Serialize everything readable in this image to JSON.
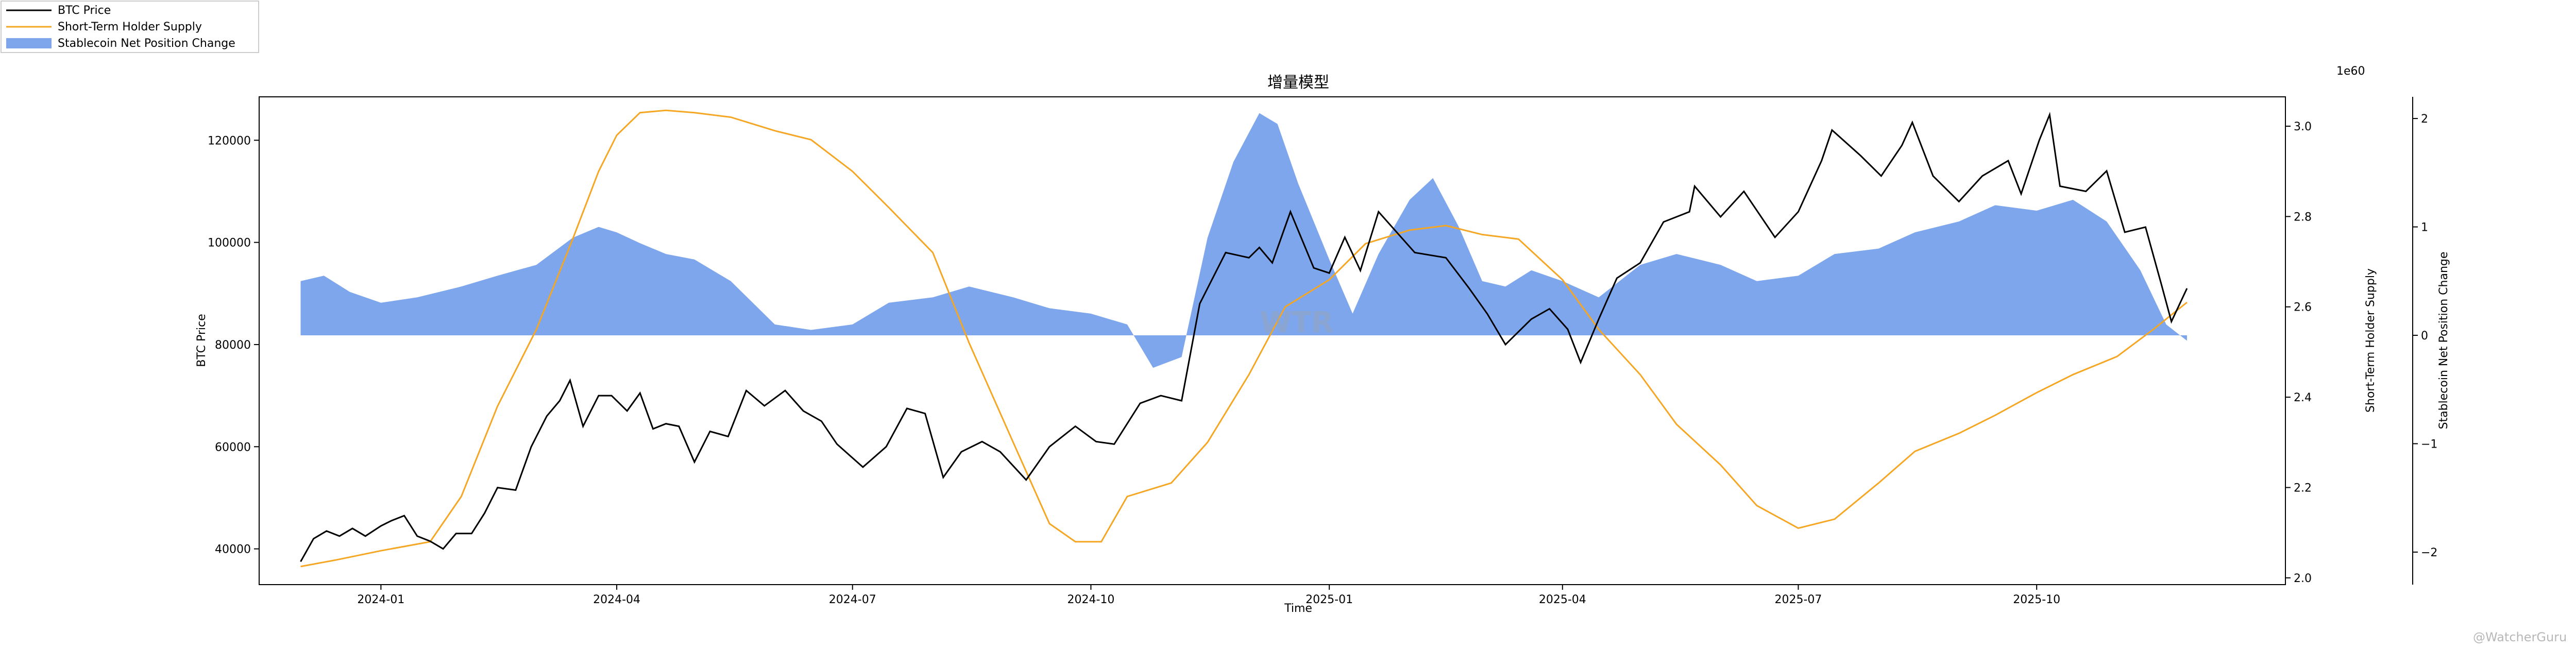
{
  "chart_data": {
    "type": "line",
    "title": "增量模型",
    "xlabel": "Time",
    "x_ticks": [
      "2024-01",
      "2024-04",
      "2024-07",
      "2024-10",
      "2025-01",
      "2025-04",
      "2025-07",
      "2025-10"
    ],
    "x_range": [
      "2023-11-15",
      "2026-01-05"
    ],
    "y_left": {
      "label": "BTC Price",
      "range": [
        33000,
        128500
      ],
      "ticks": [
        40000,
        60000,
        80000,
        100000,
        120000
      ]
    },
    "y_right1": {
      "label": "Short-Term Holder Supply",
      "range": [
        1.985,
        3.065
      ],
      "ticks": [
        2.0,
        2.2,
        2.4,
        2.6,
        2.8,
        3.0
      ],
      "offset_text": "1e60"
    },
    "y_right2": {
      "label": "Stablecoin Net Position Change",
      "range": [
        -2.3,
        2.2
      ],
      "ticks": [
        -2,
        -1,
        0,
        1,
        2
      ]
    },
    "legend": {
      "placement": "top-left",
      "entries": [
        "BTC Price",
        "Short-Term Holder Supply",
        "Stablecoin Net Position Change"
      ]
    },
    "colors": {
      "btc": "#000000",
      "sth": "#f5a623",
      "stable": "#7ea6ec"
    },
    "watermark": "WTR",
    "corner_watermark": "@WatcherGuru",
    "series": [
      {
        "name": "BTC Price",
        "axis": "left",
        "kind": "line",
        "points": [
          [
            "2023-12-01",
            37500
          ],
          [
            "2023-12-06",
            42000
          ],
          [
            "2023-12-11",
            43500
          ],
          [
            "2023-12-16",
            42500
          ],
          [
            "2023-12-21",
            44000
          ],
          [
            "2023-12-26",
            42500
          ],
          [
            "2024-01-01",
            44500
          ],
          [
            "2024-01-05",
            45500
          ],
          [
            "2024-01-10",
            46500
          ],
          [
            "2024-01-15",
            42500
          ],
          [
            "2024-01-20",
            41500
          ],
          [
            "2024-01-25",
            40000
          ],
          [
            "2024-01-30",
            43000
          ],
          [
            "2024-02-05",
            43000
          ],
          [
            "2024-02-10",
            47000
          ],
          [
            "2024-02-15",
            52000
          ],
          [
            "2024-02-22",
            51500
          ],
          [
            "2024-02-28",
            60000
          ],
          [
            "2024-03-05",
            66000
          ],
          [
            "2024-03-10",
            69000
          ],
          [
            "2024-03-14",
            73000
          ],
          [
            "2024-03-19",
            64000
          ],
          [
            "2024-03-25",
            70000
          ],
          [
            "2024-03-30",
            70000
          ],
          [
            "2024-04-05",
            67000
          ],
          [
            "2024-04-10",
            70500
          ],
          [
            "2024-04-15",
            63500
          ],
          [
            "2024-04-20",
            64500
          ],
          [
            "2024-04-25",
            64000
          ],
          [
            "2024-05-01",
            57000
          ],
          [
            "2024-05-07",
            63000
          ],
          [
            "2024-05-14",
            62000
          ],
          [
            "2024-05-21",
            71000
          ],
          [
            "2024-05-28",
            68000
          ],
          [
            "2024-06-05",
            71000
          ],
          [
            "2024-06-12",
            67000
          ],
          [
            "2024-06-19",
            65000
          ],
          [
            "2024-06-25",
            60500
          ],
          [
            "2024-07-05",
            56000
          ],
          [
            "2024-07-14",
            60000
          ],
          [
            "2024-07-22",
            67500
          ],
          [
            "2024-07-29",
            66500
          ],
          [
            "2024-08-05",
            54000
          ],
          [
            "2024-08-12",
            59000
          ],
          [
            "2024-08-20",
            61000
          ],
          [
            "2024-08-27",
            59000
          ],
          [
            "2024-09-06",
            53500
          ],
          [
            "2024-09-15",
            60000
          ],
          [
            "2024-09-25",
            64000
          ],
          [
            "2024-10-03",
            61000
          ],
          [
            "2024-10-10",
            60500
          ],
          [
            "2024-10-20",
            68500
          ],
          [
            "2024-10-28",
            70000
          ],
          [
            "2024-11-05",
            69000
          ],
          [
            "2024-11-12",
            88000
          ],
          [
            "2024-11-22",
            98000
          ],
          [
            "2024-12-01",
            97000
          ],
          [
            "2024-12-05",
            99000
          ],
          [
            "2024-12-10",
            96000
          ],
          [
            "2024-12-17",
            106000
          ],
          [
            "2024-12-26",
            95000
          ],
          [
            "2025-01-01",
            94000
          ],
          [
            "2025-01-07",
            101000
          ],
          [
            "2025-01-13",
            94500
          ],
          [
            "2025-01-20",
            106000
          ],
          [
            "2025-01-27",
            102000
          ],
          [
            "2025-02-03",
            98000
          ],
          [
            "2025-02-15",
            97000
          ],
          [
            "2025-02-24",
            91000
          ],
          [
            "2025-03-03",
            86000
          ],
          [
            "2025-03-10",
            80000
          ],
          [
            "2025-03-20",
            85000
          ],
          [
            "2025-03-27",
            87000
          ],
          [
            "2025-04-03",
            83000
          ],
          [
            "2025-04-08",
            76500
          ],
          [
            "2025-04-15",
            85000
          ],
          [
            "2025-04-22",
            93000
          ],
          [
            "2025-05-01",
            96000
          ],
          [
            "2025-05-10",
            104000
          ],
          [
            "2025-05-20",
            106000
          ],
          [
            "2025-05-22",
            111000
          ],
          [
            "2025-06-01",
            105000
          ],
          [
            "2025-06-10",
            110000
          ],
          [
            "2025-06-22",
            101000
          ],
          [
            "2025-07-01",
            106000
          ],
          [
            "2025-07-10",
            116000
          ],
          [
            "2025-07-14",
            122000
          ],
          [
            "2025-07-25",
            117000
          ],
          [
            "2025-08-02",
            113000
          ],
          [
            "2025-08-10",
            119000
          ],
          [
            "2025-08-14",
            123500
          ],
          [
            "2025-08-22",
            113000
          ],
          [
            "2025-09-01",
            108000
          ],
          [
            "2025-09-10",
            113000
          ],
          [
            "2025-09-20",
            116000
          ],
          [
            "2025-09-25",
            109500
          ],
          [
            "2025-10-02",
            120000
          ],
          [
            "2025-10-06",
            125000
          ],
          [
            "2025-10-10",
            111000
          ],
          [
            "2025-10-20",
            110000
          ],
          [
            "2025-10-28",
            114000
          ],
          [
            "2025-11-04",
            102000
          ],
          [
            "2025-11-12",
            103000
          ],
          [
            "2025-11-18",
            92000
          ],
          [
            "2025-11-22",
            84500
          ],
          [
            "2025-11-28",
            91000
          ]
        ]
      },
      {
        "name": "Short-Term Holder Supply",
        "axis": "right1",
        "kind": "line",
        "points": [
          [
            "2023-12-01",
            2.025
          ],
          [
            "2023-12-15",
            2.04
          ],
          [
            "2024-01-01",
            2.06
          ],
          [
            "2024-01-20",
            2.08
          ],
          [
            "2024-02-01",
            2.18
          ],
          [
            "2024-02-15",
            2.38
          ],
          [
            "2024-03-01",
            2.55
          ],
          [
            "2024-03-15",
            2.75
          ],
          [
            "2024-03-25",
            2.9
          ],
          [
            "2024-04-01",
            2.98
          ],
          [
            "2024-04-10",
            3.03
          ],
          [
            "2024-04-20",
            3.035
          ],
          [
            "2024-05-01",
            3.03
          ],
          [
            "2024-05-15",
            3.02
          ],
          [
            "2024-06-01",
            2.99
          ],
          [
            "2024-06-15",
            2.97
          ],
          [
            "2024-07-01",
            2.9
          ],
          [
            "2024-07-15",
            2.82
          ],
          [
            "2024-08-01",
            2.72
          ],
          [
            "2024-08-15",
            2.52
          ],
          [
            "2024-09-01",
            2.3
          ],
          [
            "2024-09-15",
            2.12
          ],
          [
            "2024-09-25",
            2.08
          ],
          [
            "2024-10-05",
            2.08
          ],
          [
            "2024-10-15",
            2.18
          ],
          [
            "2024-11-01",
            2.21
          ],
          [
            "2024-11-15",
            2.3
          ],
          [
            "2024-12-01",
            2.45
          ],
          [
            "2024-12-15",
            2.6
          ],
          [
            "2025-01-01",
            2.66
          ],
          [
            "2025-01-15",
            2.74
          ],
          [
            "2025-02-01",
            2.77
          ],
          [
            "2025-02-15",
            2.78
          ],
          [
            "2025-03-01",
            2.76
          ],
          [
            "2025-03-15",
            2.75
          ],
          [
            "2025-04-01",
            2.66
          ],
          [
            "2025-04-15",
            2.55
          ],
          [
            "2025-05-01",
            2.45
          ],
          [
            "2025-05-15",
            2.34
          ],
          [
            "2025-06-01",
            2.25
          ],
          [
            "2025-06-15",
            2.16
          ],
          [
            "2025-07-01",
            2.11
          ],
          [
            "2025-07-15",
            2.13
          ],
          [
            "2025-08-01",
            2.21
          ],
          [
            "2025-08-15",
            2.28
          ],
          [
            "2025-09-01",
            2.32
          ],
          [
            "2025-09-15",
            2.36
          ],
          [
            "2025-10-01",
            2.41
          ],
          [
            "2025-10-15",
            2.45
          ],
          [
            "2025-11-01",
            2.49
          ],
          [
            "2025-11-15",
            2.55
          ],
          [
            "2025-11-28",
            2.61
          ]
        ]
      },
      {
        "name": "Stablecoin Net Position Change",
        "axis": "right2",
        "kind": "area",
        "points": [
          [
            "2023-12-01",
            0.5
          ],
          [
            "2023-12-10",
            0.55
          ],
          [
            "2023-12-20",
            0.4
          ],
          [
            "2024-01-01",
            0.3
          ],
          [
            "2024-01-15",
            0.35
          ],
          [
            "2024-02-01",
            0.45
          ],
          [
            "2024-02-15",
            0.55
          ],
          [
            "2024-03-01",
            0.65
          ],
          [
            "2024-03-15",
            0.9
          ],
          [
            "2024-03-25",
            1.0
          ],
          [
            "2024-04-01",
            0.95
          ],
          [
            "2024-04-10",
            0.85
          ],
          [
            "2024-04-20",
            0.75
          ],
          [
            "2024-05-01",
            0.7
          ],
          [
            "2024-05-15",
            0.5
          ],
          [
            "2024-06-01",
            0.1
          ],
          [
            "2024-06-15",
            0.05
          ],
          [
            "2024-07-01",
            0.1
          ],
          [
            "2024-07-15",
            0.3
          ],
          [
            "2024-08-01",
            0.35
          ],
          [
            "2024-08-15",
            0.45
          ],
          [
            "2024-09-01",
            0.35
          ],
          [
            "2024-09-15",
            0.25
          ],
          [
            "2024-10-01",
            0.2
          ],
          [
            "2024-10-15",
            0.1
          ],
          [
            "2024-10-25",
            -0.3
          ],
          [
            "2024-11-05",
            -0.2
          ],
          [
            "2024-11-15",
            0.9
          ],
          [
            "2024-11-25",
            1.6
          ],
          [
            "2024-12-05",
            2.05
          ],
          [
            "2024-12-12",
            1.95
          ],
          [
            "2024-12-20",
            1.4
          ],
          [
            "2025-01-01",
            0.7
          ],
          [
            "2025-01-10",
            0.2
          ],
          [
            "2025-01-20",
            0.75
          ],
          [
            "2025-02-01",
            1.25
          ],
          [
            "2025-02-10",
            1.45
          ],
          [
            "2025-02-20",
            1.0
          ],
          [
            "2025-03-01",
            0.5
          ],
          [
            "2025-03-10",
            0.45
          ],
          [
            "2025-03-20",
            0.6
          ],
          [
            "2025-04-01",
            0.5
          ],
          [
            "2025-04-15",
            0.35
          ],
          [
            "2025-05-01",
            0.65
          ],
          [
            "2025-05-15",
            0.75
          ],
          [
            "2025-06-01",
            0.65
          ],
          [
            "2025-06-15",
            0.5
          ],
          [
            "2025-07-01",
            0.55
          ],
          [
            "2025-07-15",
            0.75
          ],
          [
            "2025-08-01",
            0.8
          ],
          [
            "2025-08-15",
            0.95
          ],
          [
            "2025-09-01",
            1.05
          ],
          [
            "2025-09-15",
            1.2
          ],
          [
            "2025-10-01",
            1.15
          ],
          [
            "2025-10-15",
            1.25
          ],
          [
            "2025-10-28",
            1.05
          ],
          [
            "2025-11-10",
            0.6
          ],
          [
            "2025-11-20",
            0.1
          ],
          [
            "2025-11-28",
            -0.05
          ]
        ]
      }
    ]
  }
}
